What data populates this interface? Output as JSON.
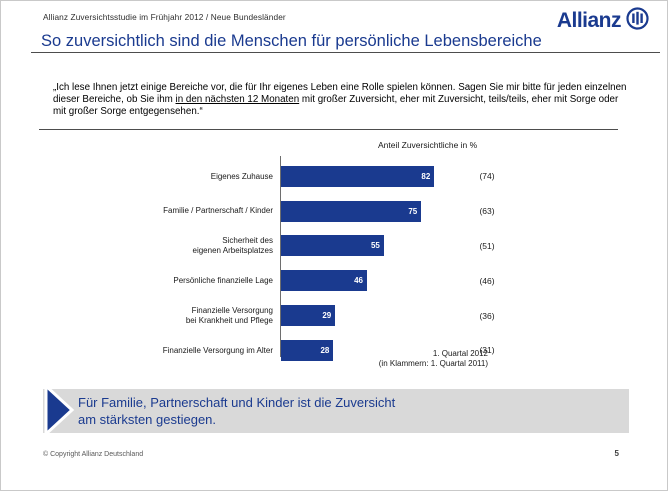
{
  "header": {
    "subtitle": "Allianz Zuversichtsstudie im Frühjahr 2012 / Neue Bundesländer",
    "logo_text": "Allianz"
  },
  "title": "So zuversichtlich sind die Menschen für persönliche Lebensbereiche",
  "quote": {
    "part1": "„Ich lese Ihnen jetzt einige Bereiche vor, die für Ihr eigenes Leben eine Rolle spielen können. Sagen Sie mir bitte für jeden einzelnen dieser Bereiche, ob Sie ihm ",
    "underlined": "in den nächsten 12 Monaten",
    "part2": " mit großer Zuversicht, eher mit Zuversicht, teils/teils, eher mit Sorge oder mit großer Sorge entgegensehen.“"
  },
  "chart_data": {
    "type": "bar",
    "orientation": "horizontal",
    "title": "Anteil Zuversichtliche in %",
    "categories": [
      [
        "Eigenes Zuhause"
      ],
      [
        "Familie / Partnerschaft / Kinder"
      ],
      [
        "Sicherheit des",
        "eigenen Arbeitsplatzes"
      ],
      [
        "Persönliche finanzielle Lage"
      ],
      [
        "Finanzielle Versorgung",
        "bei Krankheit und Pflege"
      ],
      [
        "Finanzielle Versorgung im Alter"
      ]
    ],
    "series": [
      {
        "name": "1. Quartal 2012",
        "values": [
          82,
          75,
          55,
          46,
          29,
          28
        ]
      },
      {
        "name": "1. Quartal 2011",
        "values": [
          74,
          63,
          51,
          46,
          36,
          31
        ],
        "display": "in parentheses"
      }
    ],
    "xlim": [
      0,
      100
    ],
    "bar_color": "#1a3a8f",
    "value_label_color": "#ffffff",
    "legend_note": [
      "1. Quartal 2012",
      "(in Klammern: 1. Quartal 2011)"
    ],
    "grid": false,
    "legend_position": "bottom-right"
  },
  "takeaway": {
    "lines": [
      "Für Familie, Partnerschaft und Kinder ist die Zuversicht",
      "am stärksten gestiegen."
    ]
  },
  "footer": {
    "copyright": "© Copyright Allianz Deutschland",
    "page_number": "5"
  },
  "colors": {
    "brand_blue": "#1a3a8f",
    "box_gray": "#d9d9d9"
  }
}
